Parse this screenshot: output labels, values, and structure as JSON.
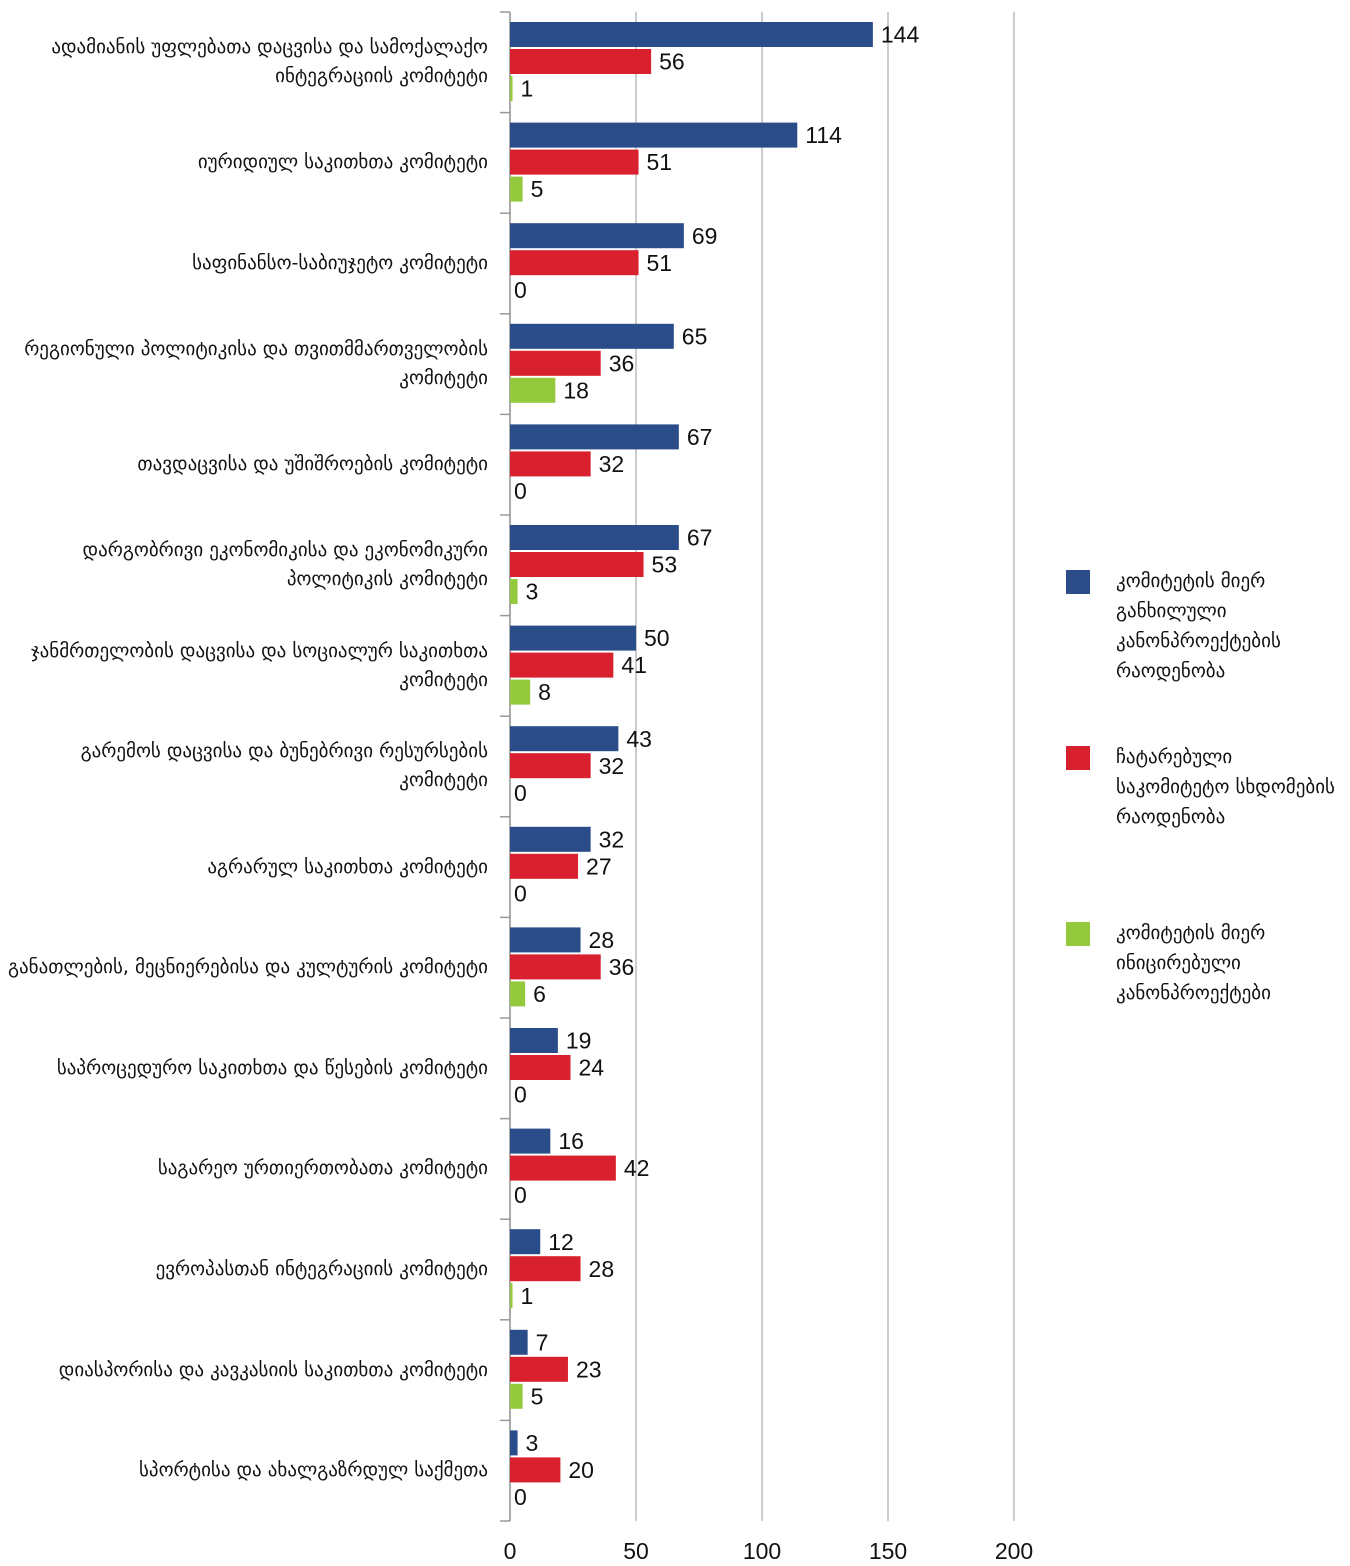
{
  "chart_data": {
    "type": "hbar",
    "categories": [
      "ადამიანის უფლებათა დაცვისა და სამოქალაქო ინტეგრაციის კომიტეტი",
      "იურიდიულ საკითხთა კომიტეტი",
      "საფინანსო-საბიუჯეტო კომიტეტი",
      "რეგიონული პოლიტიკისა და თვითმმართველობის კომიტეტი",
      "თავდაცვისა და უშიშროების კომიტეტი",
      "დარგობრივი ეკონომიკისა და ეკონომიკური პოლიტიკის კომიტეტი",
      "ჯანმრთელობის დაცვისა და სოციალურ საკითხთა კომიტეტი",
      "გარემოს დაცვისა და ბუნებრივი რესურსების კომიტეტი",
      "აგრარულ საკითხთა კომიტეტი",
      "განათლების, მეცნიერებისა და კულტურის კომიტეტი",
      "საპროცედურო საკითხთა და წესების კომიტეტი",
      "საგარეო ურთიერთობათა კომიტეტი",
      "ევროპასთან ინტეგრაციის კომიტეტი",
      "დიასპორისა და კავკასიის საკითხთა კომიტეტი",
      "სპორტისა და ახალგაზრდულ საქმეთა"
    ],
    "series": [
      {
        "name": "კომიტეტის მიერ განხილული კანონპროექტების რაოდენობა",
        "color": "#2a4d8a",
        "values": [
          144,
          114,
          69,
          65,
          67,
          67,
          50,
          43,
          32,
          28,
          19,
          16,
          12,
          7,
          3
        ]
      },
      {
        "name": "ჩატარებული საკომიტეტო სხდომების რაოდენობა",
        "color": "#d9202f",
        "values": [
          56,
          51,
          51,
          36,
          32,
          53,
          41,
          32,
          27,
          36,
          24,
          42,
          28,
          23,
          20
        ]
      },
      {
        "name": "კომიტეტის მიერ ინიცირებული კანონპროექტები",
        "color": "#94c83d",
        "values": [
          1,
          5,
          0,
          18,
          0,
          3,
          8,
          0,
          0,
          6,
          0,
          0,
          1,
          5,
          0
        ]
      }
    ],
    "xlim": [
      0,
      200
    ],
    "xticks": [
      0,
      50,
      100,
      150,
      200
    ],
    "grid": true,
    "legend": "right"
  }
}
